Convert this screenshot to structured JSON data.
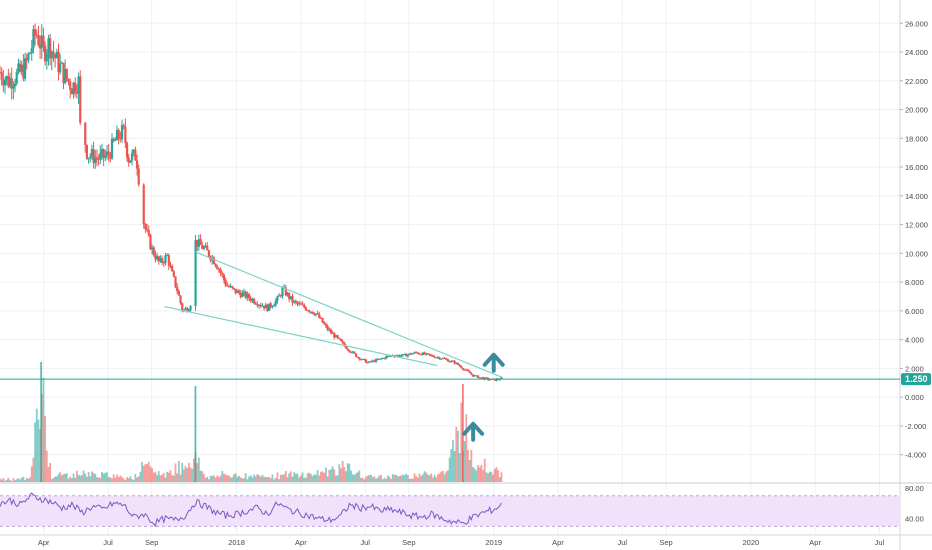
{
  "chart_data": {
    "type": "candlestick",
    "price_axis": {
      "ticks": [
        "26.000",
        "24.000",
        "22.000",
        "20.000",
        "18.000",
        "16.000",
        "14.000",
        "12.000",
        "10.000",
        "8.000",
        "6.000",
        "4.000",
        "2.000",
        "0.000",
        "-2.000",
        "-4.000"
      ],
      "tick_values": [
        26,
        24,
        22,
        20,
        18,
        16,
        14,
        12,
        10,
        8,
        6,
        4,
        2,
        0,
        -2,
        -4
      ],
      "range": [
        -5.9,
        27.2
      ]
    },
    "last_price": {
      "label": "1.250",
      "value": 1.25
    },
    "time_axis": {
      "labels": [
        "Apr",
        "Jul",
        "Sep",
        "2018",
        "Apr",
        "Jul",
        "Sep",
        "2019",
        "Apr",
        "Jul",
        "Sep",
        "2020",
        "Apr",
        "Jul"
      ],
      "years": [
        2017.25,
        2017.5,
        2017.67,
        2018.0,
        2018.25,
        2018.5,
        2018.67,
        2019.0,
        2019.25,
        2019.5,
        2019.67,
        2020.0,
        2020.25,
        2020.5
      ],
      "range": [
        2017.08,
        2020.58
      ]
    },
    "price_path": [
      [
        2017.08,
        22.6
      ],
      [
        2017.11,
        22.0
      ],
      [
        2017.15,
        22.4
      ],
      [
        2017.18,
        23.0
      ],
      [
        2017.2,
        24.2
      ],
      [
        2017.22,
        25.4
      ],
      [
        2017.25,
        24.0
      ],
      [
        2017.27,
        24.6
      ],
      [
        2017.3,
        23.4
      ],
      [
        2017.33,
        22.4
      ],
      [
        2017.36,
        21.6
      ],
      [
        2017.39,
        22.0
      ],
      [
        2017.4,
        18.8
      ],
      [
        2017.42,
        16.9
      ],
      [
        2017.46,
        16.6
      ],
      [
        2017.5,
        16.8
      ],
      [
        2017.53,
        17.9
      ],
      [
        2017.56,
        18.5
      ],
      [
        2017.58,
        16.6
      ],
      [
        2017.61,
        16.8
      ],
      [
        2017.64,
        12.0
      ],
      [
        2017.67,
        10.3
      ],
      [
        2017.7,
        9.3
      ],
      [
        2017.73,
        9.8
      ],
      [
        2017.75,
        8.5
      ],
      [
        2017.77,
        7.4
      ],
      [
        2017.79,
        6.0
      ],
      [
        2017.82,
        6.3
      ],
      [
        2017.84,
        10.8
      ],
      [
        2017.87,
        10.4
      ],
      [
        2017.91,
        9.6
      ],
      [
        2017.93,
        9.0
      ],
      [
        2017.96,
        7.8
      ],
      [
        2017.99,
        7.4
      ],
      [
        2018.03,
        7.1
      ],
      [
        2018.08,
        6.6
      ],
      [
        2018.12,
        6.2
      ],
      [
        2018.16,
        6.8
      ],
      [
        2018.18,
        7.5
      ],
      [
        2018.22,
        6.6
      ],
      [
        2018.27,
        6.2
      ],
      [
        2018.31,
        5.8
      ],
      [
        2018.35,
        4.8
      ],
      [
        2018.39,
        4.1
      ],
      [
        2018.43,
        3.4
      ],
      [
        2018.47,
        2.8
      ],
      [
        2018.51,
        2.4
      ],
      [
        2018.55,
        2.6
      ],
      [
        2018.6,
        2.9
      ],
      [
        2018.65,
        2.9
      ],
      [
        2018.7,
        3.1
      ],
      [
        2018.75,
        2.9
      ],
      [
        2018.8,
        2.7
      ],
      [
        2018.85,
        2.4
      ],
      [
        2018.88,
        2.0
      ],
      [
        2018.92,
        1.5
      ],
      [
        2018.96,
        1.3
      ],
      [
        2019.0,
        1.2
      ],
      [
        2019.03,
        1.3
      ]
    ],
    "volume_path": [
      [
        2017.08,
        0.01
      ],
      [
        2017.2,
        0.02
      ],
      [
        2017.24,
        0.85
      ],
      [
        2017.28,
        0.04
      ],
      [
        2017.4,
        0.06
      ],
      [
        2017.6,
        0.03
      ],
      [
        2017.64,
        0.12
      ],
      [
        2017.72,
        0.05
      ],
      [
        2017.84,
        0.2
      ],
      [
        2017.88,
        0.03
      ],
      [
        2017.95,
        0.05
      ],
      [
        2018.1,
        0.04
      ],
      [
        2018.3,
        0.06
      ],
      [
        2018.42,
        0.12
      ],
      [
        2018.5,
        0.03
      ],
      [
        2018.7,
        0.05
      ],
      [
        2018.82,
        0.08
      ],
      [
        2018.88,
        0.6
      ],
      [
        2018.9,
        0.3
      ],
      [
        2018.93,
        0.18
      ],
      [
        2018.96,
        0.14
      ],
      [
        2019.0,
        0.1
      ],
      [
        2019.03,
        0.06
      ]
    ],
    "volume_axis": {
      "ticks": [
        "80.00",
        "40.00"
      ],
      "tick_values": [
        80,
        40
      ],
      "range": [
        20,
        84
      ]
    },
    "rsi_path": [
      [
        2017.08,
        60
      ],
      [
        2017.12,
        64
      ],
      [
        2017.16,
        58
      ],
      [
        2017.2,
        70
      ],
      [
        2017.24,
        66
      ],
      [
        2017.28,
        62
      ],
      [
        2017.32,
        54
      ],
      [
        2017.36,
        58
      ],
      [
        2017.4,
        48
      ],
      [
        2017.44,
        56
      ],
      [
        2017.48,
        52
      ],
      [
        2017.52,
        60
      ],
      [
        2017.56,
        58
      ],
      [
        2017.6,
        42
      ],
      [
        2017.64,
        46
      ],
      [
        2017.68,
        34
      ],
      [
        2017.72,
        40
      ],
      [
        2017.76,
        38
      ],
      [
        2017.8,
        44
      ],
      [
        2017.84,
        62
      ],
      [
        2017.88,
        56
      ],
      [
        2017.92,
        48
      ],
      [
        2017.96,
        44
      ],
      [
        2018.0,
        46
      ],
      [
        2018.04,
        50
      ],
      [
        2018.08,
        54
      ],
      [
        2018.12,
        46
      ],
      [
        2018.16,
        60
      ],
      [
        2018.2,
        52
      ],
      [
        2018.24,
        48
      ],
      [
        2018.28,
        44
      ],
      [
        2018.32,
        40
      ],
      [
        2018.36,
        38
      ],
      [
        2018.4,
        42
      ],
      [
        2018.44,
        58
      ],
      [
        2018.48,
        54
      ],
      [
        2018.52,
        56
      ],
      [
        2018.56,
        50
      ],
      [
        2018.6,
        52
      ],
      [
        2018.64,
        48
      ],
      [
        2018.68,
        44
      ],
      [
        2018.72,
        42
      ],
      [
        2018.76,
        46
      ],
      [
        2018.8,
        40
      ],
      [
        2018.84,
        36
      ],
      [
        2018.88,
        34
      ],
      [
        2018.92,
        42
      ],
      [
        2018.96,
        48
      ],
      [
        2019.0,
        52
      ],
      [
        2019.03,
        58
      ]
    ],
    "rsi_band": {
      "upper": 70,
      "lower": 30
    },
    "trendlines": [
      {
        "name": "upper",
        "points": [
          [
            2017.84,
            10.1
          ],
          [
            2019.03,
            1.4
          ]
        ]
      },
      {
        "name": "lower",
        "points": [
          [
            2017.72,
            6.3
          ],
          [
            2018.78,
            2.2
          ]
        ]
      }
    ],
    "arrows": [
      {
        "pane": "price",
        "x": 2019.0,
        "y": 2.6
      },
      {
        "pane": "volume",
        "x": 2018.92,
        "y": 0.38
      }
    ],
    "colors": {
      "up": "#26a69a",
      "down": "#ef5350",
      "trend": "#7fd1c8",
      "rsi": "#7e57c2",
      "rsi_band": "#f0e2fb",
      "arrow": "#3c8aa0",
      "price_label_bg": "#22a59a",
      "grid": "#eef0f3",
      "axis_text": "#4a4a4a"
    }
  }
}
